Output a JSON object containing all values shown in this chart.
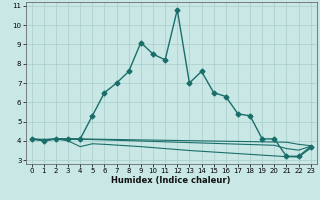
{
  "xlabel": "Humidex (Indice chaleur)",
  "xlim": [
    -0.5,
    23.5
  ],
  "ylim": [
    2.8,
    11.2
  ],
  "yticks": [
    3,
    4,
    5,
    6,
    7,
    8,
    9,
    10,
    11
  ],
  "xticks": [
    0,
    1,
    2,
    3,
    4,
    5,
    6,
    7,
    8,
    9,
    10,
    11,
    12,
    13,
    14,
    15,
    16,
    17,
    18,
    19,
    20,
    21,
    22,
    23
  ],
  "bg_color": "#c9e8e5",
  "grid_color": "#a8ceca",
  "line_color": "#1a6e6a",
  "lines": [
    {
      "x": [
        0,
        1,
        2,
        3,
        4,
        5,
        6,
        7,
        8,
        9,
        10,
        11,
        12,
        13,
        14,
        15,
        16,
        17,
        18,
        19,
        20,
        21,
        22,
        23
      ],
      "y": [
        4.1,
        4.0,
        4.1,
        4.1,
        4.1,
        5.3,
        6.5,
        7.0,
        7.6,
        9.1,
        8.5,
        8.2,
        10.8,
        7.0,
        7.6,
        6.5,
        6.3,
        5.4,
        5.3,
        4.1,
        4.1,
        3.2,
        3.2,
        3.7
      ],
      "marker": "D",
      "markersize": 2.5,
      "linewidth": 1.0,
      "has_marker": true
    },
    {
      "x": [
        0,
        1,
        2,
        3,
        4,
        5,
        6,
        7,
        8,
        9,
        10,
        11,
        12,
        13,
        14,
        15,
        16,
        17,
        18,
        19,
        20,
        21,
        22,
        23
      ],
      "y": [
        4.1,
        4.0,
        4.1,
        4.0,
        3.7,
        3.85,
        3.82,
        3.78,
        3.74,
        3.7,
        3.65,
        3.6,
        3.55,
        3.5,
        3.46,
        3.42,
        3.38,
        3.34,
        3.3,
        3.26,
        3.22,
        3.18,
        3.16,
        3.62
      ],
      "marker": null,
      "markersize": 0,
      "linewidth": 0.8,
      "has_marker": false
    },
    {
      "x": [
        0,
        1,
        2,
        3,
        4,
        5,
        6,
        7,
        8,
        9,
        10,
        11,
        12,
        13,
        14,
        15,
        16,
        17,
        18,
        19,
        20,
        21,
        22,
        23
      ],
      "y": [
        4.1,
        4.05,
        4.1,
        4.08,
        4.08,
        4.07,
        4.05,
        4.03,
        4.01,
        3.99,
        3.97,
        3.95,
        3.93,
        3.91,
        3.89,
        3.87,
        3.85,
        3.83,
        3.81,
        3.79,
        3.77,
        3.6,
        3.52,
        3.72
      ],
      "marker": null,
      "markersize": 0,
      "linewidth": 0.8,
      "has_marker": false
    },
    {
      "x": [
        0,
        1,
        2,
        3,
        4,
        5,
        6,
        7,
        8,
        9,
        10,
        11,
        12,
        13,
        14,
        15,
        16,
        17,
        18,
        19,
        20,
        21,
        22,
        23
      ],
      "y": [
        4.1,
        4.08,
        4.1,
        4.1,
        4.1,
        4.09,
        4.08,
        4.07,
        4.06,
        4.05,
        4.04,
        4.03,
        4.02,
        4.01,
        4.0,
        3.99,
        3.98,
        3.97,
        3.96,
        3.95,
        3.94,
        3.93,
        3.82,
        3.75
      ],
      "marker": null,
      "markersize": 0,
      "linewidth": 0.8,
      "has_marker": false
    }
  ]
}
